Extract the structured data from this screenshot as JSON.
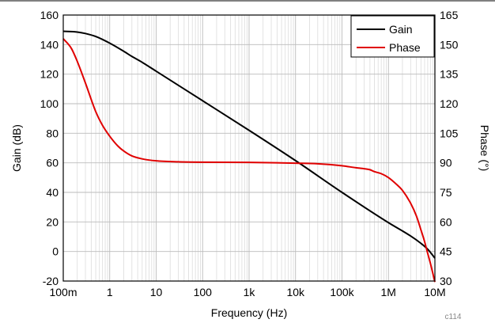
{
  "chart_data": {
    "type": "line",
    "xlabel": "Frequency (Hz)",
    "ylabel_left": "Gain (dB)",
    "ylabel_right": "Phase (°)",
    "figure_code": "c114",
    "x_scale": "log",
    "xlim": [
      0.1,
      10000000
    ],
    "ylim_left": [
      -20,
      160
    ],
    "ylim_right": [
      30,
      165
    ],
    "grid": true,
    "legend_position": "top-right",
    "x_ticks": [
      {
        "value": 0.1,
        "label": "100m"
      },
      {
        "value": 1,
        "label": "1"
      },
      {
        "value": 10,
        "label": "10"
      },
      {
        "value": 100,
        "label": "100"
      },
      {
        "value": 1000,
        "label": "1k"
      },
      {
        "value": 10000,
        "label": "10k"
      },
      {
        "value": 100000,
        "label": "100k"
      },
      {
        "value": 1000000,
        "label": "1M"
      },
      {
        "value": 10000000,
        "label": "10M"
      }
    ],
    "y_left_ticks": [
      {
        "value": -20,
        "label": "-20"
      },
      {
        "value": 0,
        "label": "0"
      },
      {
        "value": 20,
        "label": "20"
      },
      {
        "value": 40,
        "label": "40"
      },
      {
        "value": 60,
        "label": "60"
      },
      {
        "value": 80,
        "label": "80"
      },
      {
        "value": 100,
        "label": "100"
      },
      {
        "value": 120,
        "label": "120"
      },
      {
        "value": 140,
        "label": "140"
      },
      {
        "value": 160,
        "label": "160"
      }
    ],
    "y_right_ticks": [
      {
        "value": 30,
        "label": "30"
      },
      {
        "value": 45,
        "label": "45"
      },
      {
        "value": 60,
        "label": "60"
      },
      {
        "value": 75,
        "label": "75"
      },
      {
        "value": 90,
        "label": "90"
      },
      {
        "value": 105,
        "label": "105"
      },
      {
        "value": 120,
        "label": "120"
      },
      {
        "value": 135,
        "label": "135"
      },
      {
        "value": 150,
        "label": "150"
      },
      {
        "value": 165,
        "label": "165"
      }
    ],
    "series": [
      {
        "name": "Gain",
        "color": "#000000",
        "axis": "left",
        "x": [
          0.1,
          0.2,
          0.3,
          0.5,
          1,
          2,
          3,
          5,
          10,
          100,
          1000,
          10000,
          100000,
          1000000,
          3000000,
          5000000,
          7000000,
          10000000
        ],
        "y": [
          149,
          148.5,
          147.5,
          145.5,
          141,
          135.5,
          132,
          128,
          122,
          102,
          82,
          61.5,
          40,
          19.5,
          10.5,
          5.5,
          1.5,
          -4.5
        ]
      },
      {
        "name": "Phase",
        "color": "#e00000",
        "axis": "right",
        "x": [
          0.1,
          0.15,
          0.2,
          0.3,
          0.5,
          0.7,
          1,
          1.5,
          2,
          3,
          5,
          10,
          30,
          100,
          1000,
          10000,
          30000,
          100000,
          200000,
          300000,
          400000,
          500000,
          700000,
          1000000,
          1500000,
          2000000,
          3000000,
          4000000,
          5000000,
          6000000,
          7000000,
          8000000,
          9000000,
          10000000
        ],
        "y": [
          153,
          148,
          141.5,
          130.5,
          116,
          109,
          103.5,
          98.5,
          96,
          93.5,
          92,
          91,
          90.5,
          90.3,
          90.2,
          89.8,
          89.5,
          88.5,
          87.5,
          87,
          86.5,
          85.5,
          84.5,
          82.5,
          79,
          76,
          69.5,
          63,
          56,
          50,
          44,
          39,
          34,
          29.5
        ]
      }
    ]
  }
}
